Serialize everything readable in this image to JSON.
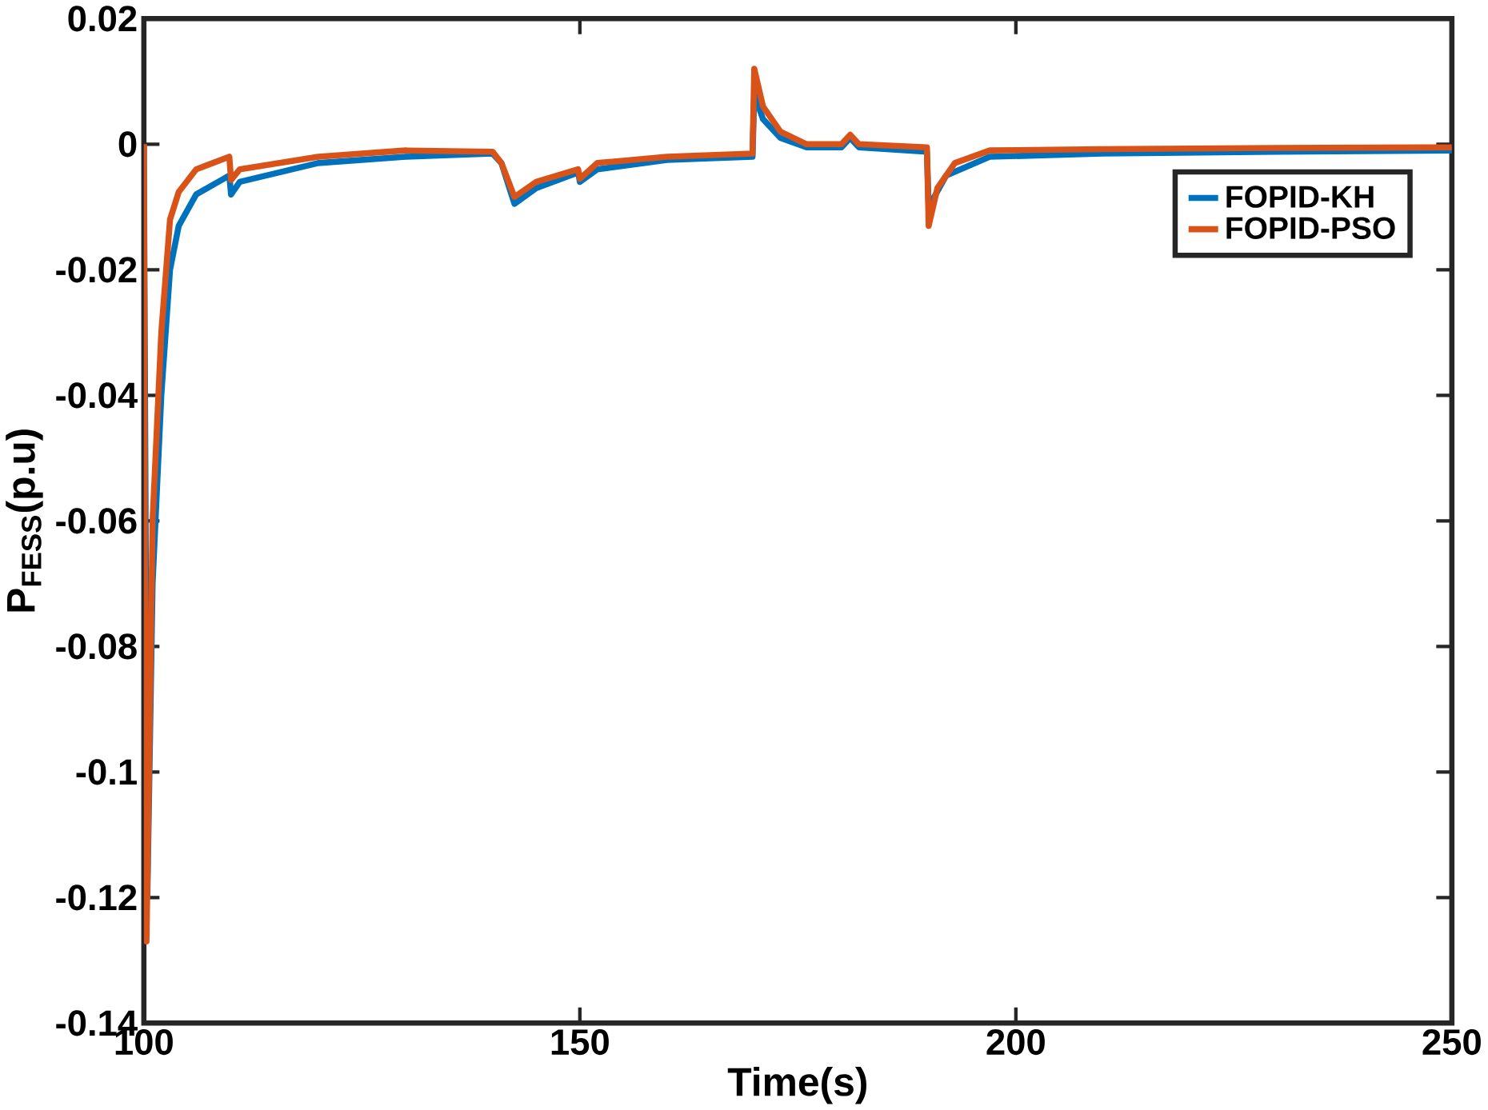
{
  "chart_data": {
    "type": "line",
    "xlabel": "Time(s)",
    "ylabel": "P$_{FESS}$(p.u)",
    "xlim": [
      100,
      250
    ],
    "ylim": [
      -0.14,
      0.02
    ],
    "xticks": [
      100,
      150,
      200,
      250
    ],
    "yticks": [
      {
        "value": -0.14,
        "label": "-0.14"
      },
      {
        "value": -0.12,
        "label": "-0.12"
      },
      {
        "value": -0.1,
        "label": "-0.1"
      },
      {
        "value": -0.08,
        "label": "-0.08"
      },
      {
        "value": -0.06,
        "label": "-0.06"
      },
      {
        "value": -0.04,
        "label": "-0.04"
      },
      {
        "value": -0.02,
        "label": "-0.02"
      },
      {
        "value": 0,
        "label": "0"
      },
      {
        "value": 0.02,
        "label": "0.02"
      }
    ],
    "grid": false,
    "legend": "top right",
    "line_style": "solid",
    "marker": "none",
    "series": [
      {
        "name": "FOPID-KH",
        "color": "#0072bd",
        "x": [
          100,
          100.2,
          100.4,
          101,
          102,
          103,
          104,
          106,
          109.8,
          110,
          111,
          120,
          130,
          140,
          141,
          142.5,
          145,
          149.8,
          150,
          152,
          160,
          169.8,
          170,
          171,
          173,
          176,
          180,
          181,
          182,
          189.8,
          190,
          192,
          197,
          210,
          230,
          250
        ],
        "values": [
          0,
          -0.06,
          -0.12,
          -0.07,
          -0.04,
          -0.02,
          -0.013,
          -0.008,
          -0.005,
          -0.008,
          -0.006,
          -0.003,
          -0.002,
          -0.0015,
          -0.003,
          -0.0095,
          -0.007,
          -0.0045,
          -0.006,
          -0.004,
          -0.0025,
          -0.002,
          0.008,
          0.004,
          0.001,
          -0.0005,
          -0.0005,
          0.001,
          -0.0005,
          -0.0012,
          -0.01,
          -0.005,
          -0.002,
          -0.0015,
          -0.0012,
          -0.001
        ]
      },
      {
        "name": "FOPID-PSO",
        "color": "#d95319",
        "x": [
          100,
          100.1,
          100.3,
          101,
          102,
          103,
          104,
          106,
          109.8,
          110,
          111,
          120,
          130,
          140,
          141,
          142.5,
          145,
          149.8,
          150,
          152,
          160,
          169.8,
          170,
          171,
          173,
          176,
          180,
          181,
          182,
          189.8,
          190,
          191,
          193,
          197,
          210,
          230,
          250
        ],
        "values": [
          0,
          -0.06,
          -0.127,
          -0.06,
          -0.03,
          -0.012,
          -0.0076,
          -0.004,
          -0.002,
          -0.0057,
          -0.004,
          -0.002,
          -0.001,
          -0.0012,
          -0.003,
          -0.0084,
          -0.006,
          -0.004,
          -0.0055,
          -0.003,
          -0.002,
          -0.0015,
          0.012,
          0.006,
          0.002,
          0,
          0,
          0.0015,
          0,
          -0.0005,
          -0.013,
          -0.007,
          -0.003,
          -0.001,
          -0.0008,
          -0.0006,
          -0.0005
        ]
      }
    ]
  }
}
